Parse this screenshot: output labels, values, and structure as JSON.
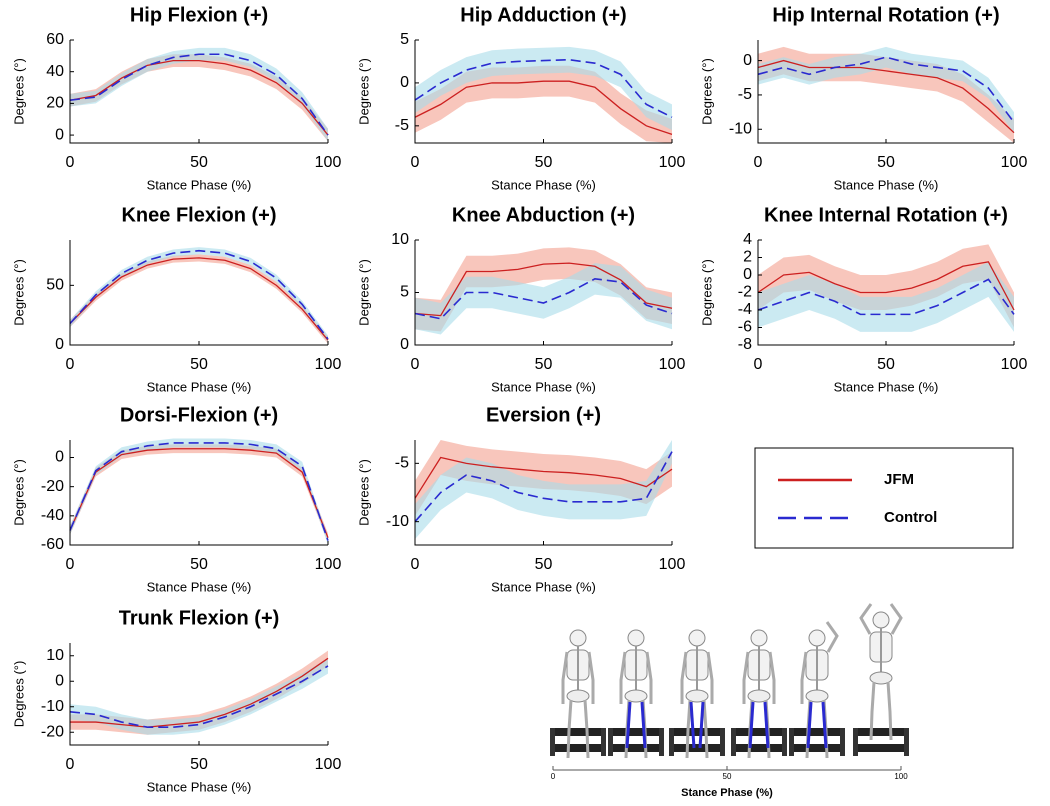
{
  "chart_data": [
    {
      "type": "line",
      "title": "Hip Flexion (+)",
      "xlabel": "Stance Phase (%)",
      "ylabel": "Degrees (°)",
      "x": [
        0,
        10,
        20,
        30,
        40,
        50,
        60,
        70,
        80,
        90,
        100
      ],
      "xlim": [
        0,
        100
      ],
      "xticks": [
        0,
        50,
        100
      ],
      "ylim": [
        -5,
        60
      ],
      "yticks": [
        0,
        20,
        40,
        60
      ],
      "series": [
        {
          "name": "JFM",
          "color": "#cc2020",
          "band_color": "#f4a090",
          "linestyle": "solid",
          "values": [
            22,
            25,
            36,
            44,
            47,
            47,
            45,
            41,
            33,
            20,
            0
          ],
          "upper": [
            26,
            29,
            40,
            48,
            51,
            51,
            49,
            45,
            37,
            24,
            4
          ],
          "lower": [
            18,
            21,
            32,
            40,
            43,
            43,
            41,
            37,
            29,
            16,
            -4
          ]
        },
        {
          "name": "Control",
          "color": "#2a2ad0",
          "band_color": "#a8dcea",
          "linestyle": "dashed",
          "values": [
            22,
            24,
            35,
            44,
            49,
            51,
            51,
            47,
            38,
            23,
            0
          ],
          "upper": [
            26,
            28,
            39,
            48,
            53,
            55,
            55,
            51,
            42,
            27,
            4
          ],
          "lower": [
            18,
            20,
            31,
            40,
            45,
            47,
            47,
            43,
            34,
            19,
            -4
          ]
        }
      ]
    },
    {
      "type": "line",
      "title": "Hip Adduction (+)",
      "xlabel": "Stance Phase (%)",
      "ylabel": "Degrees (°)",
      "x": [
        0,
        10,
        20,
        30,
        40,
        50,
        60,
        70,
        80,
        90,
        100
      ],
      "xlim": [
        0,
        100
      ],
      "xticks": [
        0,
        50,
        100
      ],
      "ylim": [
        -7,
        5
      ],
      "yticks": [
        -5,
        0,
        5
      ],
      "series": [
        {
          "name": "JFM",
          "color": "#cc2020",
          "band_color": "#f4a090",
          "linestyle": "solid",
          "values": [
            -4,
            -2.5,
            -0.5,
            0,
            0,
            0.2,
            0.2,
            -0.5,
            -3,
            -5,
            -6
          ],
          "upper": [
            -2.2,
            -0.7,
            1.3,
            1.8,
            1.8,
            2,
            2,
            1.3,
            -1.2,
            -3.2,
            -4.2
          ],
          "lower": [
            -5.8,
            -4.3,
            -2.3,
            -1.8,
            -1.8,
            -1.6,
            -1.6,
            -2.3,
            -4.8,
            -6.8,
            -7
          ]
        },
        {
          "name": "Control",
          "color": "#2a2ad0",
          "band_color": "#a8dcea",
          "linestyle": "dashed",
          "values": [
            -2,
            0,
            1.5,
            2.3,
            2.5,
            2.6,
            2.7,
            2.3,
            1,
            -2.5,
            -4
          ],
          "upper": [
            -0.5,
            1.5,
            3,
            3.8,
            4,
            4.1,
            4.2,
            3.8,
            2.5,
            -1,
            -2.5
          ],
          "lower": [
            -3.5,
            -1.5,
            0,
            0.8,
            1,
            1.1,
            1.2,
            0.8,
            -0.5,
            -4,
            -5.5
          ]
        }
      ]
    },
    {
      "type": "line",
      "title": "Hip Internal Rotation (+)",
      "xlabel": "Stance Phase (%)",
      "ylabel": "Degrees (°)",
      "x": [
        0,
        10,
        20,
        30,
        40,
        50,
        60,
        70,
        80,
        90,
        100
      ],
      "xlim": [
        0,
        100
      ],
      "xticks": [
        0,
        50,
        100
      ],
      "ylim": [
        -12,
        3
      ],
      "yticks": [
        -10,
        -5,
        0
      ],
      "series": [
        {
          "name": "JFM",
          "color": "#cc2020",
          "band_color": "#f4a090",
          "linestyle": "solid",
          "values": [
            -1,
            0,
            -1,
            -1,
            -1,
            -1.5,
            -2,
            -2.5,
            -4,
            -7,
            -10.5
          ],
          "upper": [
            1,
            2,
            1,
            1,
            1,
            0.5,
            0,
            -0.5,
            -2,
            -5,
            -8.5
          ],
          "lower": [
            -3,
            -2,
            -3,
            -3,
            -3,
            -3.5,
            -4,
            -4.5,
            -6,
            -9,
            -12
          ]
        },
        {
          "name": "Control",
          "color": "#2a2ad0",
          "band_color": "#a8dcea",
          "linestyle": "dashed",
          "values": [
            -2,
            -1,
            -2,
            -1,
            -0.5,
            0.5,
            -0.5,
            -1,
            -1.5,
            -4,
            -9
          ],
          "upper": [
            -0.5,
            0.5,
            -0.5,
            0.5,
            1,
            2,
            1,
            0.5,
            0,
            -2.5,
            -7.5
          ],
          "lower": [
            -3.5,
            -2.5,
            -3.5,
            -2.5,
            -2,
            -1,
            -2,
            -2.5,
            -3,
            -5.5,
            -10.5
          ]
        }
      ]
    },
    {
      "type": "line",
      "title": "Knee Flexion (+)",
      "xlabel": "Stance Phase (%)",
      "ylabel": "Degrees (°)",
      "x": [
        0,
        10,
        20,
        30,
        40,
        50,
        60,
        70,
        80,
        90,
        100
      ],
      "xlim": [
        0,
        100
      ],
      "xticks": [
        0,
        50,
        100
      ],
      "ylim": [
        0,
        88
      ],
      "yticks": [
        0,
        50
      ],
      "series": [
        {
          "name": "JFM",
          "color": "#cc2020",
          "band_color": "#f4a090",
          "linestyle": "solid",
          "values": [
            18,
            40,
            57,
            67,
            72,
            73,
            71,
            64,
            50,
            30,
            4
          ],
          "upper": [
            21,
            43,
            60,
            70,
            75,
            76,
            74,
            67,
            53,
            33,
            7
          ],
          "lower": [
            15,
            37,
            54,
            64,
            69,
            70,
            68,
            61,
            47,
            27,
            1
          ]
        },
        {
          "name": "Control",
          "color": "#2a2ad0",
          "band_color": "#a8dcea",
          "linestyle": "dashed",
          "values": [
            18,
            42,
            60,
            71,
            77,
            79,
            77,
            70,
            56,
            34,
            5
          ],
          "upper": [
            21,
            45,
            63,
            74,
            80,
            82,
            80,
            73,
            59,
            37,
            8
          ],
          "lower": [
            15,
            39,
            57,
            68,
            74,
            76,
            74,
            67,
            53,
            31,
            2
          ]
        }
      ]
    },
    {
      "type": "line",
      "title": "Knee Abduction (+)",
      "xlabel": "Stance Phase (%)",
      "ylabel": "Degrees (°)",
      "x": [
        0,
        10,
        20,
        30,
        40,
        50,
        60,
        70,
        80,
        90,
        100
      ],
      "xlim": [
        0,
        100
      ],
      "xticks": [
        0,
        50,
        100
      ],
      "ylim": [
        0,
        10
      ],
      "yticks": [
        0,
        5,
        10
      ],
      "series": [
        {
          "name": "JFM",
          "color": "#cc2020",
          "band_color": "#f4a090",
          "linestyle": "solid",
          "values": [
            3,
            2.8,
            7,
            7,
            7.2,
            7.7,
            7.8,
            7.5,
            6.2,
            4,
            3.5
          ],
          "upper": [
            4.5,
            4.3,
            8.5,
            8.5,
            8.7,
            9.2,
            9.3,
            9,
            7.7,
            5.5,
            5
          ],
          "lower": [
            1.5,
            1.3,
            5.5,
            5.5,
            5.7,
            6.2,
            6.3,
            6,
            4.7,
            2.5,
            2
          ]
        },
        {
          "name": "Control",
          "color": "#2a2ad0",
          "band_color": "#a8dcea",
          "linestyle": "dashed",
          "values": [
            3,
            2.5,
            5,
            5,
            4.5,
            4,
            5,
            6.3,
            6,
            3.8,
            3
          ],
          "upper": [
            4.5,
            4,
            6.5,
            6.5,
            6,
            5.5,
            6.5,
            7.8,
            7.5,
            5.3,
            4.5
          ],
          "lower": [
            1.5,
            1,
            3.5,
            3.5,
            3,
            2.5,
            3.5,
            4.8,
            4.5,
            2.3,
            1.5
          ]
        }
      ]
    },
    {
      "type": "line",
      "title": "Knee Internal Rotation (+)",
      "xlabel": "Stance Phase (%)",
      "ylabel": "Degrees (°)",
      "x": [
        0,
        10,
        20,
        30,
        40,
        50,
        60,
        70,
        80,
        90,
        100
      ],
      "xlim": [
        0,
        100
      ],
      "xticks": [
        0,
        50,
        100
      ],
      "ylim": [
        -8,
        4
      ],
      "yticks": [
        -8,
        -6,
        -4,
        -2,
        0,
        2,
        4
      ],
      "series": [
        {
          "name": "JFM",
          "color": "#cc2020",
          "band_color": "#f4a090",
          "linestyle": "solid",
          "values": [
            -2,
            0,
            0.3,
            -1,
            -2,
            -2,
            -1.5,
            -0.5,
            1,
            1.5,
            -4
          ],
          "upper": [
            0,
            2,
            2.3,
            1,
            0,
            0,
            0.5,
            1.5,
            3,
            3.5,
            -2
          ],
          "lower": [
            -4,
            -2,
            -1.7,
            -3,
            -4,
            -4,
            -3.5,
            -2.5,
            -1,
            -0.5,
            -6
          ]
        },
        {
          "name": "Control",
          "color": "#2a2ad0",
          "band_color": "#a8dcea",
          "linestyle": "dashed",
          "values": [
            -4,
            -3,
            -2,
            -3,
            -4.5,
            -4.5,
            -4.5,
            -3.5,
            -2,
            -0.5,
            -4.5
          ],
          "upper": [
            -2,
            -1,
            0,
            -1,
            -2.5,
            -2.5,
            -2.5,
            -1.5,
            0,
            1.5,
            -2.5
          ],
          "lower": [
            -6,
            -5,
            -4,
            -5,
            -6.5,
            -6.5,
            -6.5,
            -5.5,
            -4,
            -2.5,
            -6.5
          ]
        }
      ]
    },
    {
      "type": "line",
      "title": "Dorsi-Flexion (+)",
      "xlabel": "Stance Phase (%)",
      "ylabel": "Degrees (°)",
      "x": [
        0,
        10,
        20,
        30,
        40,
        50,
        60,
        70,
        80,
        90,
        100
      ],
      "xlim": [
        0,
        100
      ],
      "xticks": [
        0,
        50,
        100
      ],
      "ylim": [
        -60,
        12
      ],
      "yticks": [
        -60,
        -40,
        -20,
        0
      ],
      "series": [
        {
          "name": "JFM",
          "color": "#cc2020",
          "band_color": "#f4a090",
          "linestyle": "solid",
          "values": [
            -50,
            -10,
            2,
            5,
            6,
            6,
            6,
            5,
            3,
            -10,
            -55
          ],
          "upper": [
            -47,
            -7,
            5,
            8,
            9,
            9,
            9,
            8,
            6,
            -7,
            -52
          ],
          "lower": [
            -53,
            -13,
            -1,
            2,
            3,
            3,
            3,
            2,
            0,
            -13,
            -58
          ]
        },
        {
          "name": "Control",
          "color": "#2a2ad0",
          "band_color": "#a8dcea",
          "linestyle": "dashed",
          "values": [
            -50,
            -9,
            4,
            8,
            10,
            10,
            10,
            9,
            6,
            -6,
            -57
          ],
          "upper": [
            -47,
            -6,
            7,
            11,
            13,
            13,
            13,
            12,
            9,
            -3,
            -54
          ],
          "lower": [
            -53,
            -12,
            1,
            5,
            7,
            7,
            7,
            6,
            3,
            -9,
            -60
          ]
        }
      ]
    },
    {
      "type": "line",
      "title": "Eversion (+)",
      "xlabel": "Stance Phase (%)",
      "ylabel": "Degrees (°)",
      "x": [
        0,
        10,
        20,
        30,
        40,
        50,
        60,
        70,
        80,
        90,
        100
      ],
      "xlim": [
        0,
        100
      ],
      "xticks": [
        0,
        50,
        100
      ],
      "ylim": [
        -12,
        -3
      ],
      "yticks": [
        -10,
        -5
      ],
      "series": [
        {
          "name": "JFM",
          "color": "#cc2020",
          "band_color": "#f4a090",
          "linestyle": "solid",
          "values": [
            -8,
            -4.5,
            -5,
            -5.3,
            -5.5,
            -5.7,
            -5.8,
            -6,
            -6.3,
            -7,
            -5.5
          ],
          "upper": [
            -6.5,
            -3,
            -3.5,
            -3.8,
            -4,
            -4.2,
            -4.3,
            -4.5,
            -4.8,
            -5.5,
            -4
          ],
          "lower": [
            -9.5,
            -6,
            -6.5,
            -6.8,
            -7,
            -7.2,
            -7.3,
            -7.5,
            -7.8,
            -8.5,
            -7
          ]
        },
        {
          "name": "Control",
          "color": "#2a2ad0",
          "band_color": "#a8dcea",
          "linestyle": "dashed",
          "values": [
            -10,
            -7.5,
            -6,
            -6.5,
            -7.5,
            -8,
            -8.3,
            -8.3,
            -8.3,
            -8,
            -4
          ],
          "upper": [
            -8.5,
            -6,
            -4.5,
            -5,
            -6,
            -6.5,
            -6.8,
            -6.8,
            -6.8,
            -6.5,
            -3
          ],
          "lower": [
            -11.5,
            -9,
            -7.5,
            -8,
            -9,
            -9.5,
            -9.8,
            -9.8,
            -9.8,
            -9.5,
            -5
          ]
        }
      ]
    },
    {
      "type": "line",
      "title": "Trunk Flexion (+)",
      "xlabel": "Stance Phase (%)",
      "ylabel": "Degrees (°)",
      "x": [
        0,
        10,
        20,
        30,
        40,
        50,
        60,
        70,
        80,
        90,
        100
      ],
      "xlim": [
        0,
        100
      ],
      "xticks": [
        0,
        50,
        100
      ],
      "ylim": [
        -25,
        15
      ],
      "yticks": [
        -20,
        -10,
        0,
        10
      ],
      "series": [
        {
          "name": "JFM",
          "color": "#cc2020",
          "band_color": "#f4a090",
          "linestyle": "solid",
          "values": [
            -16,
            -16,
            -17,
            -18,
            -17,
            -16,
            -13,
            -9,
            -4,
            2,
            9
          ],
          "upper": [
            -13,
            -13,
            -14,
            -15,
            -14,
            -13,
            -10,
            -6,
            -1,
            5,
            12
          ],
          "lower": [
            -19,
            -19,
            -20,
            -21,
            -20,
            -19,
            -16,
            -12,
            -7,
            -1,
            6
          ]
        },
        {
          "name": "Control",
          "color": "#2a2ad0",
          "band_color": "#a8dcea",
          "linestyle": "dashed",
          "values": [
            -12,
            -13,
            -16,
            -18,
            -18,
            -17,
            -14,
            -10,
            -5,
            0,
            6
          ],
          "upper": [
            -9,
            -10,
            -13,
            -15,
            -15,
            -14,
            -11,
            -7,
            -2,
            3,
            9
          ],
          "lower": [
            -15,
            -16,
            -19,
            -21,
            -21,
            -20,
            -17,
            -13,
            -8,
            -3,
            3
          ]
        }
      ]
    }
  ],
  "illustration": {
    "xlabel": "Stance Phase (%)",
    "xlim": [
      0,
      100
    ],
    "xticks": [
      0,
      50,
      100
    ]
  }
}
